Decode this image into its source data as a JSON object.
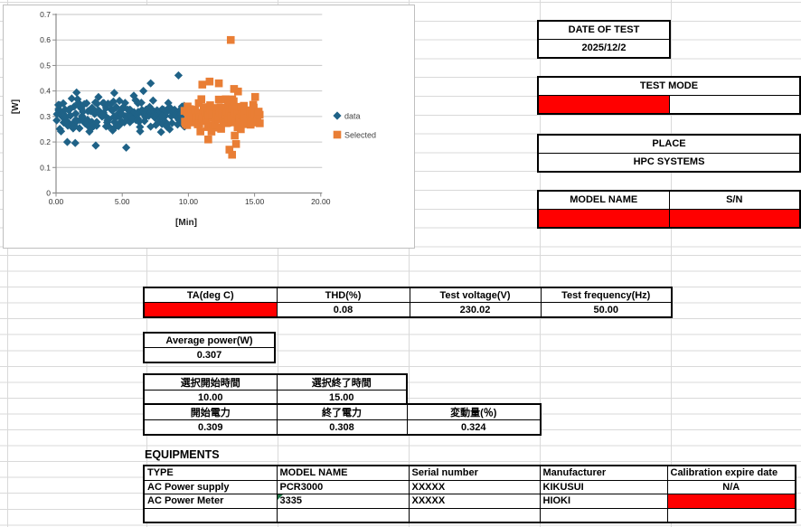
{
  "colors": {
    "cell_red": "#FF0000",
    "series_blue": "#1F6287",
    "series_orange": "#E97E35",
    "grid_line": "#D9D9D9"
  },
  "chart_data": {
    "type": "scatter",
    "title": "",
    "xlabel": "[Min]",
    "ylabel": "[W]",
    "xlim": [
      0,
      20
    ],
    "ylim": [
      0,
      0.7
    ],
    "xticks": {
      "values": [
        0,
        5,
        10,
        15,
        20
      ],
      "labels": [
        "0.00",
        "5.00",
        "10.00",
        "15.00",
        "20.00"
      ]
    },
    "yticks": {
      "values": [
        0,
        0.1,
        0.2,
        0.3,
        0.4,
        0.5,
        0.6,
        0.7
      ],
      "labels": [
        "0",
        "0.1",
        "0.2",
        "0.3",
        "0.4",
        "0.5",
        "0.6",
        "0.7"
      ]
    },
    "grid": "horizontal",
    "legend_position": "right",
    "series": [
      {
        "name": "data",
        "marker": "diamond",
        "color": "#1F6287",
        "band": {
          "x_start": 0.0,
          "x_end": 9.7,
          "points": 200,
          "y_mean": 0.303,
          "y_min": 0.235,
          "y_max": 0.4
        },
        "outliers": [
          [
            0.85,
            0.2
          ],
          [
            1.45,
            0.196
          ],
          [
            1.55,
            0.394
          ],
          [
            3.0,
            0.186
          ],
          [
            5.3,
            0.178
          ],
          [
            4.4,
            0.392
          ],
          [
            6.6,
            0.4
          ],
          [
            7.15,
            0.43
          ],
          [
            9.25,
            0.461
          ]
        ]
      },
      {
        "name": "Selected",
        "marker": "square",
        "color": "#E97E35",
        "band": {
          "x_start": 9.75,
          "x_end": 15.4,
          "points": 125,
          "y_mean": 0.305,
          "y_min": 0.24,
          "y_max": 0.385
        },
        "outliers": [
          [
            11.05,
            0.425
          ],
          [
            11.6,
            0.437
          ],
          [
            12.3,
            0.43
          ],
          [
            13.45,
            0.408
          ],
          [
            13.75,
            0.398
          ],
          [
            11.5,
            0.21
          ],
          [
            13.5,
            0.225
          ],
          [
            13.1,
            0.17
          ],
          [
            13.3,
            0.15
          ],
          [
            13.6,
            0.192
          ],
          [
            13.2,
            0.6
          ]
        ]
      }
    ]
  },
  "info": {
    "date_of_test": {
      "label": "DATE OF TEST",
      "value": "2025/12/2"
    },
    "test_mode": {
      "label": "TEST MODE",
      "value": ""
    },
    "place": {
      "label": "PLACE",
      "value": "HPC SYSTEMS"
    },
    "model": {
      "label": "MODEL NAME",
      "value": ""
    },
    "sn": {
      "label": "S/N",
      "value": ""
    }
  },
  "params_table": {
    "headers": [
      "TA(deg C)",
      "THD(%)",
      "Test voltage(V)",
      "Test frequency(Hz)"
    ],
    "values": [
      "",
      "0.08",
      "230.02",
      "50.00"
    ]
  },
  "average_power": {
    "label": "Average power(W)",
    "value": "0.307"
  },
  "selection_table": {
    "start_label": "選択開始時間",
    "end_label": "選択終了時間",
    "start_value": "10.00",
    "end_value": "15.00",
    "p_start_label": "開始電力",
    "p_end_label": "終了電力",
    "delta_label": "変動量(％)",
    "p_start_value": "0.309",
    "p_end_value": "0.308",
    "delta_value": "0.324"
  },
  "equipments": {
    "title": "EQUIPMENTS",
    "headers": [
      "TYPE",
      "MODEL NAME",
      "Serial number",
      "Manufacturer",
      "Calibration expire date"
    ],
    "rows": [
      {
        "type": "AC Power supply",
        "model": "PCR3000",
        "serial": "XXXXX",
        "mfr": "KIKUSUI",
        "cal": "N/A"
      },
      {
        "type": "AC Power Meter",
        "model": "3335",
        "serial": "XXXXX",
        "mfr": "HIOKI",
        "cal": ""
      },
      {
        "type": "",
        "model": "",
        "serial": "",
        "mfr": "",
        "cal": ""
      }
    ]
  }
}
